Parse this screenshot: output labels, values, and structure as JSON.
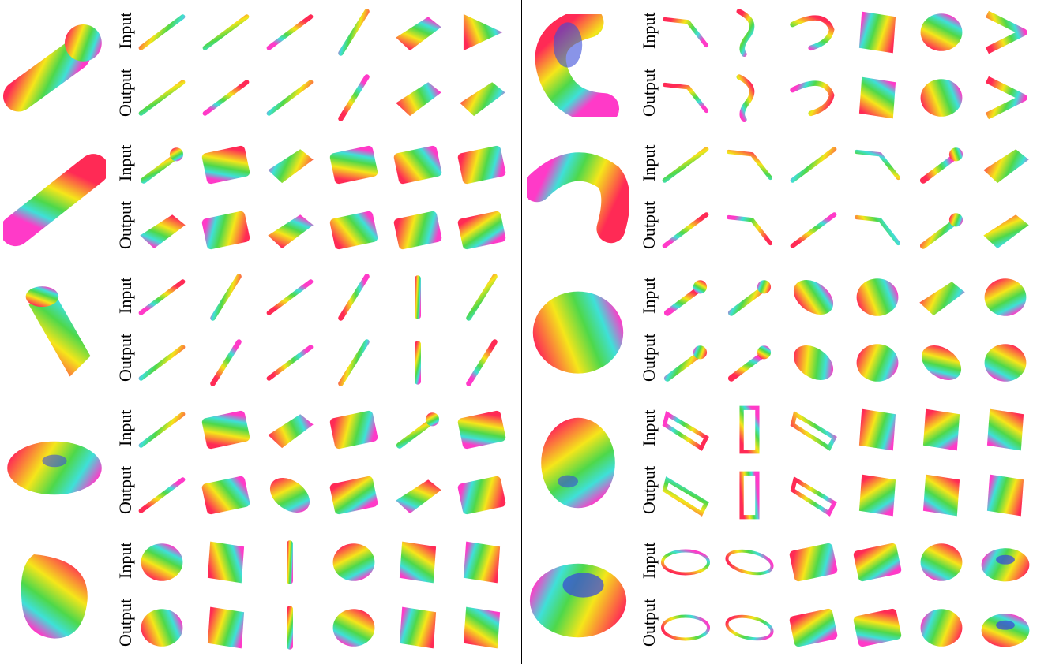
{
  "rows": [
    {
      "left": {
        "shape": "capsule-bulb",
        "labels": [
          "Input",
          "Output"
        ]
      },
      "right": {
        "shape": "curl",
        "labels": [
          "Input",
          "Output"
        ]
      }
    },
    {
      "left": {
        "shape": "long-cylinder",
        "labels": [
          "Input",
          "Output"
        ]
      },
      "right": {
        "shape": "arch",
        "labels": [
          "Input",
          "Output"
        ]
      }
    },
    {
      "left": {
        "shape": "tapered-cylinder",
        "labels": [
          "Input",
          "Output"
        ]
      },
      "right": {
        "shape": "ellipsoid",
        "labels": [
          "Input",
          "Output"
        ]
      }
    },
    {
      "left": {
        "shape": "flat-disk",
        "labels": [
          "Input",
          "Output"
        ]
      },
      "right": {
        "shape": "egg",
        "labels": [
          "Input",
          "Output"
        ]
      }
    },
    {
      "left": {
        "shape": "bean",
        "labels": [
          "Input",
          "Output"
        ]
      },
      "right": {
        "shape": "torus",
        "labels": [
          "Input",
          "Output"
        ]
      }
    }
  ],
  "colors": {
    "red": "#ff2a55",
    "yellow": "#f5e61a",
    "green": "#4ed84a",
    "cyan": "#3fe0d8",
    "blue": "#3a4cd8",
    "magenta": "#ff3ac8"
  }
}
